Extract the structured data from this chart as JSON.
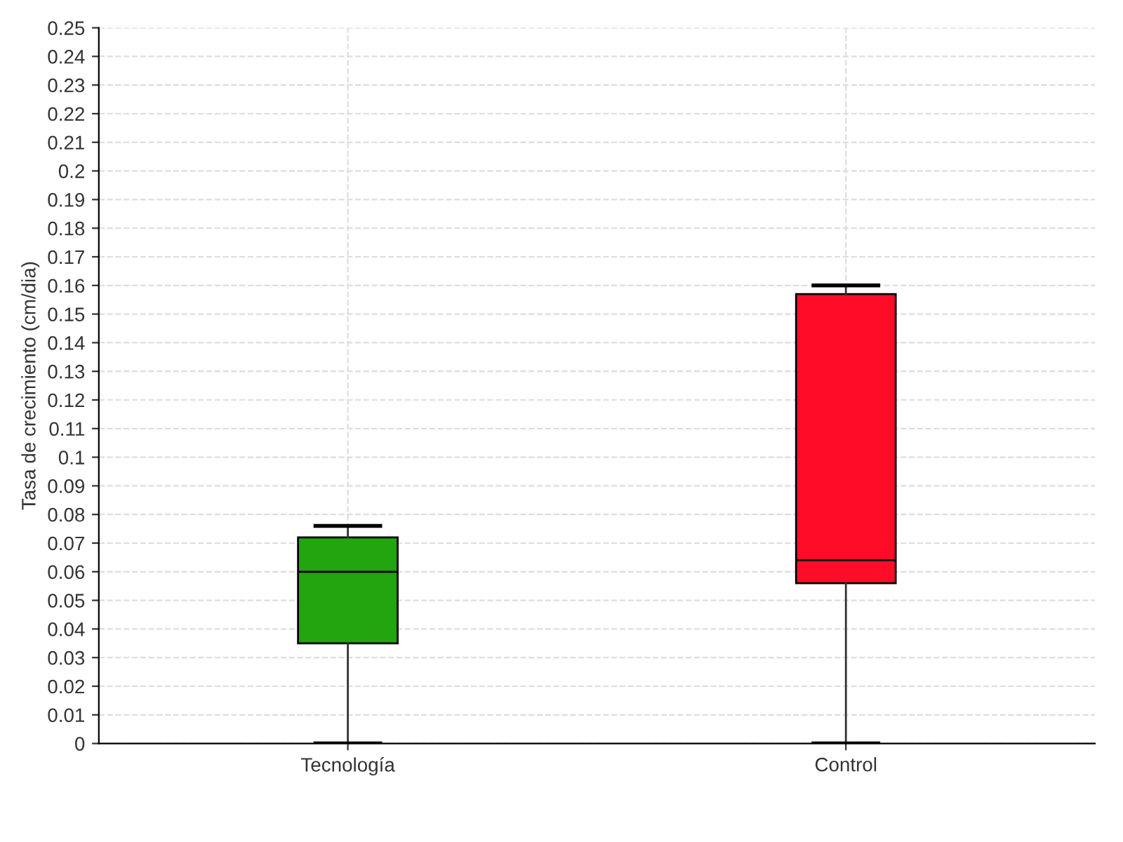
{
  "chart_data": {
    "type": "box",
    "ylabel": "Tasa de crecimiento (cm/dia)",
    "categories": [
      "Tecnología",
      "Control"
    ],
    "colors": [
      "#22a50f",
      "#ff0c28"
    ],
    "boxes": [
      {
        "low": 0,
        "q1": 0.035,
        "median": 0.06,
        "q3": 0.072,
        "high": 0.076
      },
      {
        "low": 0,
        "q1": 0.056,
        "median": 0.064,
        "q3": 0.157,
        "high": 0.16
      }
    ],
    "ylim": [
      0,
      0.25
    ],
    "yticks": [
      0,
      0.01,
      0.02,
      0.03,
      0.04,
      0.05,
      0.06,
      0.07,
      0.08,
      0.09,
      0.1,
      0.11,
      0.12,
      0.13,
      0.14,
      0.15,
      0.16,
      0.17,
      0.18,
      0.19,
      0.2,
      0.21,
      0.22,
      0.23,
      0.24,
      0.25
    ],
    "grid": true
  }
}
